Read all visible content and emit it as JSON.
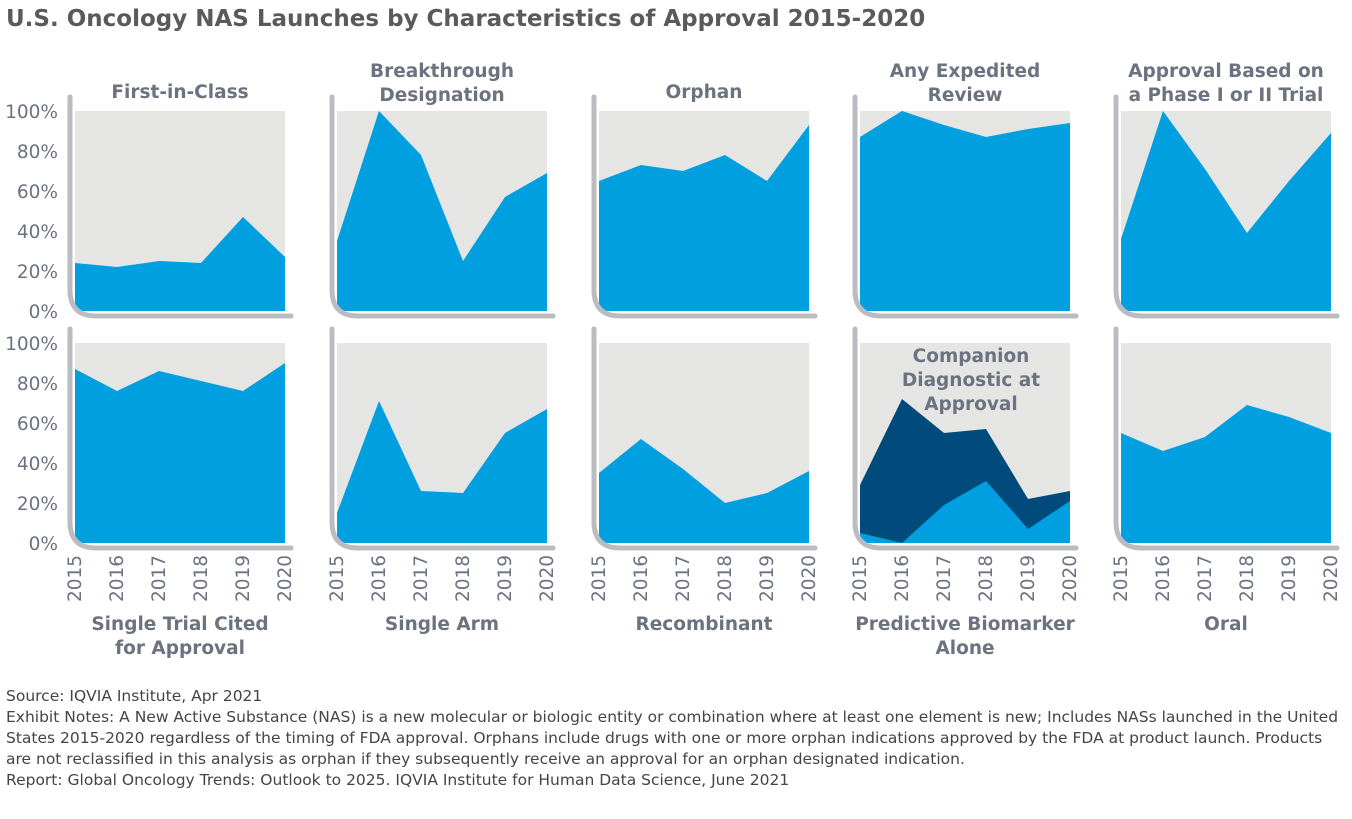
{
  "title": "U.S. Oncology NAS Launches by Characteristics of Approval 2015-2020",
  "colors": {
    "series_fill": "#009fdf",
    "series_dark": "#004b7c",
    "panel_bg": "#e5e5e4",
    "axis": "#bbbcbf",
    "text": "#6b7280"
  },
  "chart_data": {
    "type": "area",
    "x": [
      "2015",
      "2016",
      "2017",
      "2018",
      "2019",
      "2020"
    ],
    "ylim": [
      0,
      100
    ],
    "yticks": [
      "100%",
      "80%",
      "60%",
      "40%",
      "20%",
      "0%"
    ],
    "panels": [
      {
        "title": [
          "First-in-Class"
        ],
        "title_position": "top",
        "values": [
          24,
          22,
          25,
          24,
          47,
          27
        ]
      },
      {
        "title": [
          "Breakthrough",
          "Designation"
        ],
        "title_position": "top",
        "values": [
          35,
          100,
          78,
          25,
          57,
          69
        ]
      },
      {
        "title": [
          "Orphan"
        ],
        "title_position": "top",
        "values": [
          65,
          73,
          70,
          78,
          65,
          93
        ]
      },
      {
        "title": [
          "Any Expedited",
          "Review"
        ],
        "title_position": "top",
        "values": [
          87,
          100,
          93,
          87,
          91,
          94
        ]
      },
      {
        "title": [
          "Approval Based on",
          "a Phase I or II Trial"
        ],
        "title_position": "top",
        "values": [
          36,
          100,
          71,
          39,
          65,
          89
        ]
      },
      {
        "title": [
          "Single Trial Cited",
          "for Approval"
        ],
        "title_position": "bottom",
        "values": [
          87,
          76,
          86,
          81,
          76,
          90
        ]
      },
      {
        "title": [
          "Single Arm"
        ],
        "title_position": "bottom",
        "values": [
          15,
          71,
          26,
          25,
          55,
          67
        ]
      },
      {
        "title": [
          "Recombinant"
        ],
        "title_position": "bottom",
        "values": [
          35,
          52,
          37,
          20,
          25,
          36
        ]
      },
      {
        "title": [
          "Predictive Biomarker",
          "Alone"
        ],
        "title_position": "bottom",
        "values": [
          5,
          0,
          19,
          31,
          7,
          21
        ],
        "overlay_title": [
          "Companion",
          "Diagnostic at",
          "Approval"
        ],
        "overlay_values": [
          29,
          72,
          55,
          57,
          22,
          26
        ]
      },
      {
        "title": [
          "Oral"
        ],
        "title_position": "bottom",
        "values": [
          55,
          46,
          53,
          69,
          63,
          55
        ]
      }
    ]
  },
  "notes": {
    "source": "Source: IQVIA Institute, Apr 2021",
    "exhibit": "Exhibit Notes: A New Active Substance (NAS) is a new molecular or biologic entity or combination where at least one element is new; Includes NASs launched in the United States 2015-2020 regardless of the timing of FDA approval. Orphans include drugs with one or more orphan indications approved by the FDA at product launch. Products are not reclassified in this analysis as orphan if they subsequently receive an approval for an orphan designated indication.",
    "report": "Report: Global Oncology Trends: Outlook to 2025. IQVIA Institute for Human Data Science, June 2021"
  }
}
